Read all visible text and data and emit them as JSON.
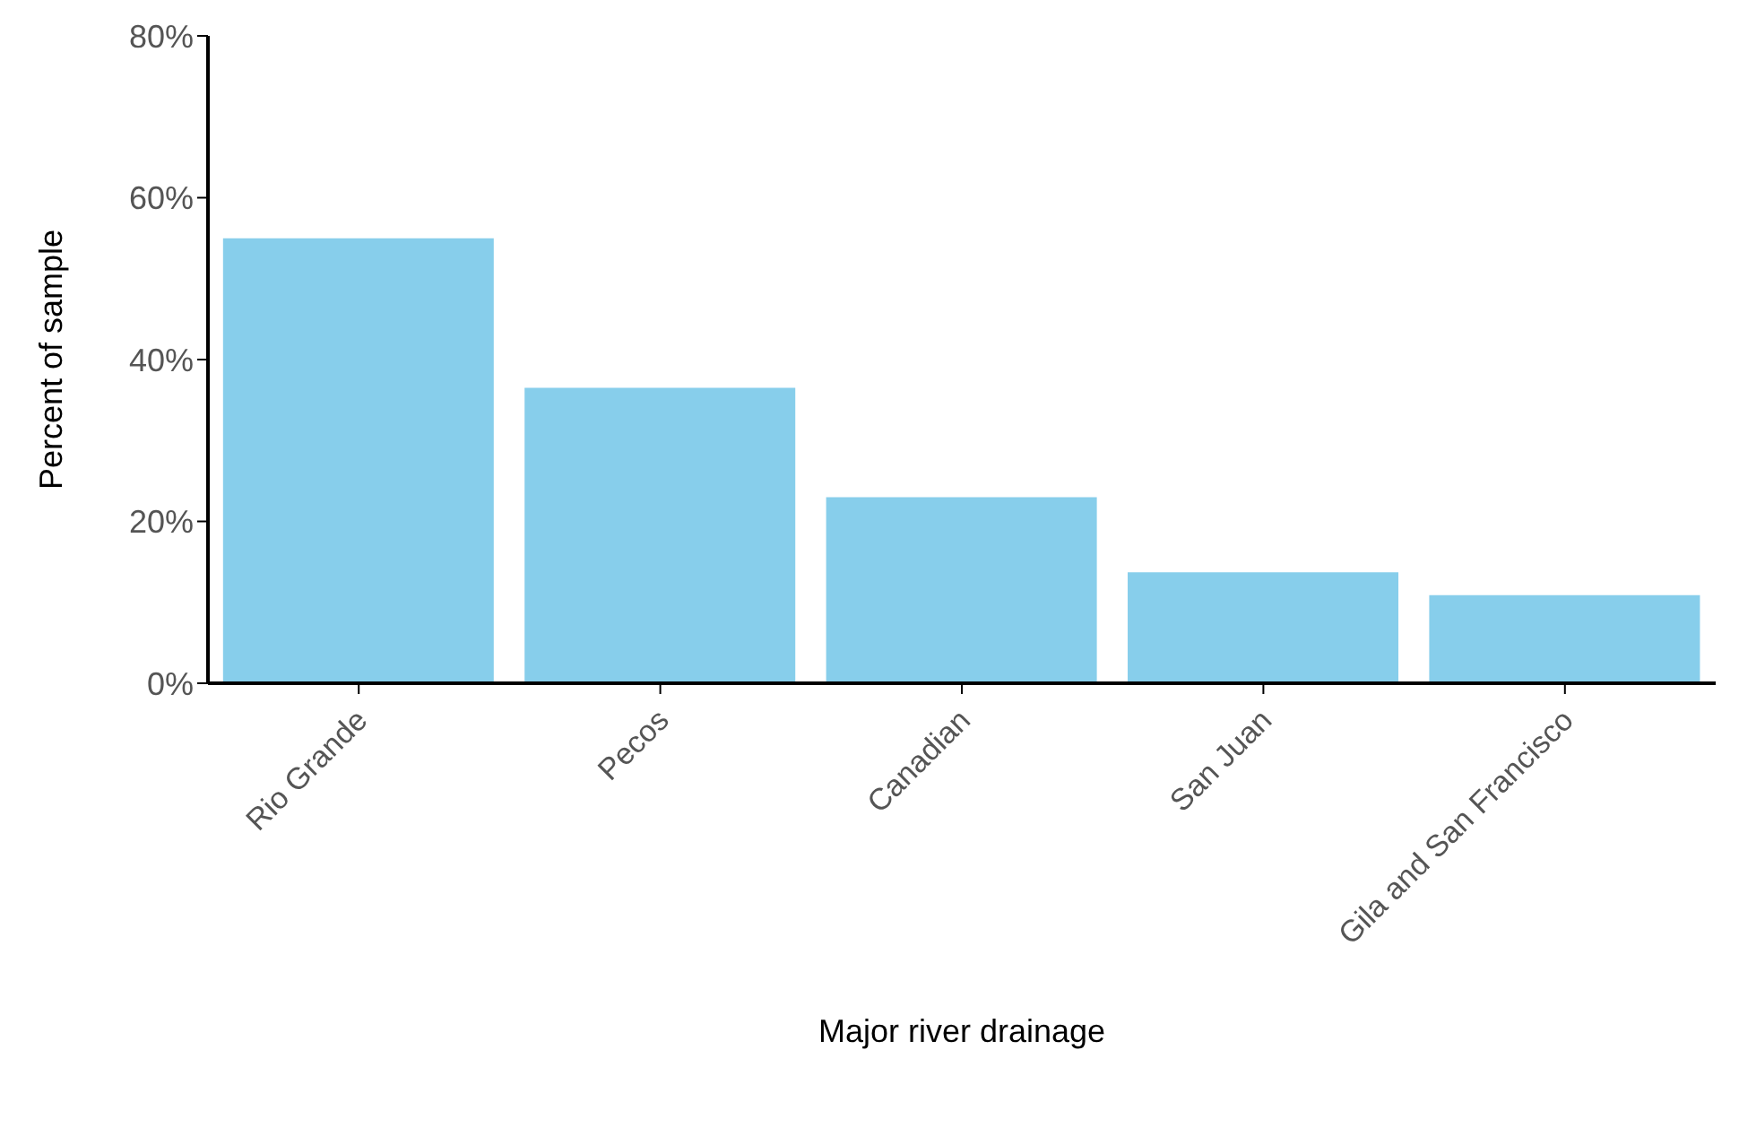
{
  "chart_data": {
    "type": "bar",
    "xlabel": "Major river drainage",
    "ylabel": "Percent of sample",
    "categories": [
      "Rio Grande",
      "Pecos",
      "Canadian",
      "San Juan",
      "Gila and San Francisco"
    ],
    "values": [
      55,
      36.5,
      23,
      13.7,
      10.9
    ],
    "color": "#87ceeb",
    "ylim": [
      0,
      80
    ],
    "yticks": [
      {
        "value": 0,
        "label": "0%"
      },
      {
        "value": 20,
        "label": "20%"
      },
      {
        "value": 40,
        "label": "40%"
      },
      {
        "value": 60,
        "label": "60%"
      },
      {
        "value": 80,
        "label": "80%"
      }
    ],
    "grid": false,
    "legend": false
  }
}
